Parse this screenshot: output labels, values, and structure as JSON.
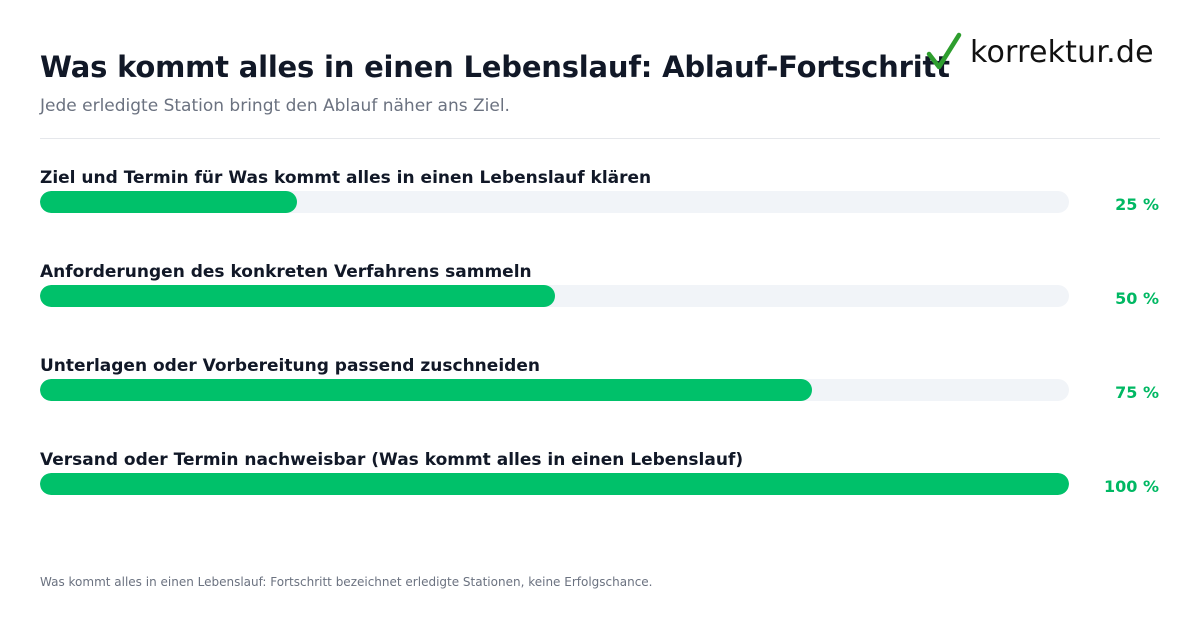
{
  "header": {
    "title": "Was kommt alles in einen Lebenslauf: Ablauf-Fortschritt",
    "subtitle": "Jede erledigte Station bringt den Ablauf näher ans Ziel."
  },
  "brand": {
    "name": "korrektur.de",
    "logo_icon": "checkmark-icon",
    "accent_color": "#00c16a",
    "check_color": "#2e9e2e"
  },
  "colors": {
    "bar_fill": "#00c16a",
    "bar_track": "#f1f4f8",
    "percent_text": "#00b863"
  },
  "chart_data": {
    "type": "bar",
    "orientation": "horizontal",
    "title": "Was kommt alles in einen Lebenslauf: Ablauf-Fortschritt",
    "subtitle": "Jede erledigte Station bringt den Ablauf näher ans Ziel.",
    "xlim": [
      0,
      100
    ],
    "grid": false,
    "categories": [
      "Ziel und Termin für Was kommt alles in einen Lebenslauf klären",
      "Anforderungen des konkreten Verfahrens sammeln",
      "Unterlagen oder Vorbereitung passend zuschneiden",
      "Versand oder Termin nachweisbar (Was kommt alles in einen Lebenslauf)"
    ],
    "values": [
      25,
      50,
      75,
      100
    ],
    "value_labels": [
      "25 %",
      "50 %",
      "75 %",
      "100 %"
    ]
  },
  "footer": {
    "note": "Was kommt alles in einen Lebenslauf: Fortschritt bezeichnet erledigte Stationen, keine Erfolgschance."
  }
}
